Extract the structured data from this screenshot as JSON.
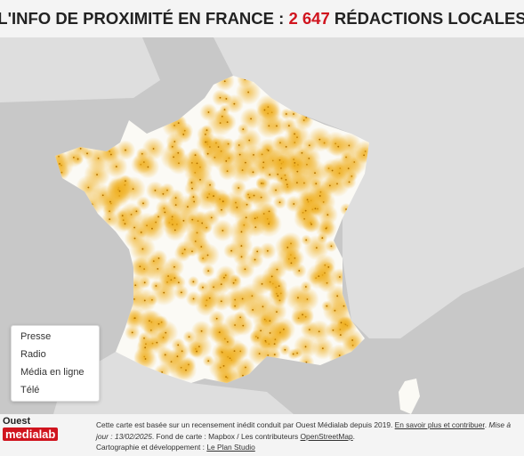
{
  "header": {
    "title_start": "L'INFO DE PROXIMITÉ EN FRANCE : ",
    "title_count": "2 647",
    "title_end": " RÉDACTIONS LOCALES"
  },
  "legend": {
    "items": [
      "Presse",
      "Radio",
      "Média en ligne",
      "Télé"
    ]
  },
  "logo": {
    "top": "Ouest",
    "bottom": "medialab"
  },
  "footer": {
    "text1": "Cette carte est basée sur un recensement inédit conduit par Ouest Médialab depuis 2019. ",
    "link1": "En savoir plus et contribuer",
    "text2": ". ",
    "update": "Mise à jour : 13/02/2025",
    "text3": ". Fond de carte : Mapbox / Les contributeurs ",
    "link2": "OpenStreetMap",
    "text4": ". ",
    "text5": "Cartographie et développement : ",
    "link3": "Le Plan Studio"
  }
}
